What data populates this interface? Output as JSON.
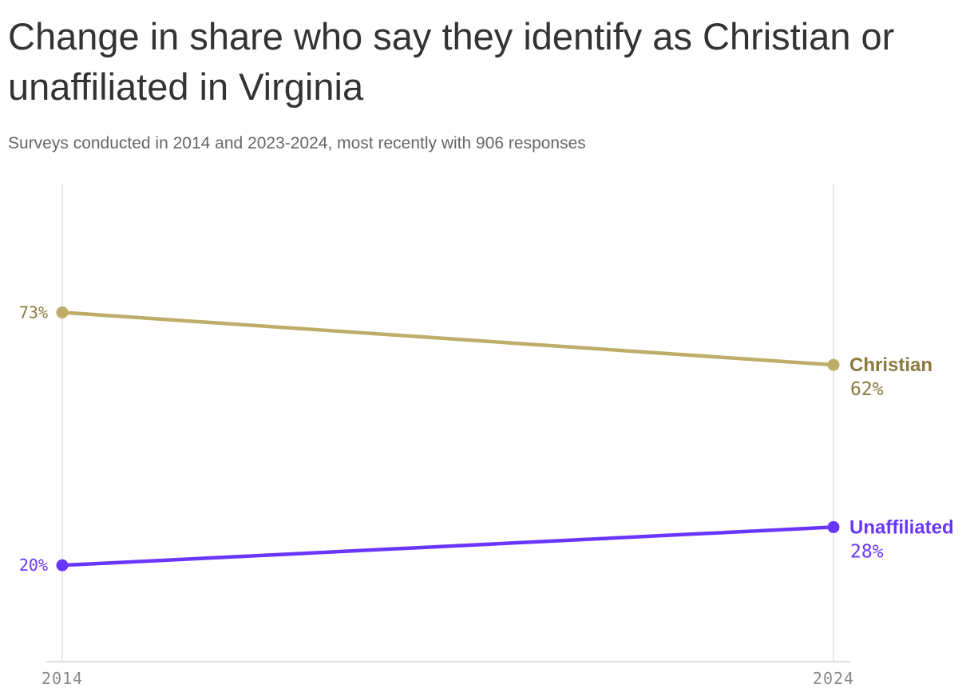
{
  "title": "Change in share who say they identify as Christian or unaffiliated in Virginia",
  "subtitle": "Surveys conducted in 2014 and 2023-2024, most recently with 906 responses",
  "chart_data": {
    "type": "line",
    "x": [
      "2014",
      "2024"
    ],
    "series": [
      {
        "name": "Christian",
        "values": [
          73,
          62
        ],
        "labels": [
          "73%",
          "62%"
        ],
        "color": "#bfac68",
        "label_color": "#8a7a3f"
      },
      {
        "name": "Unaffiliated",
        "values": [
          20,
          28
        ],
        "labels": [
          "20%",
          "28%"
        ],
        "color": "#6a35ff",
        "label_color": "#6a35ff"
      }
    ],
    "ylim": [
      -0.2,
      100
    ],
    "grid": "vertical lines at each year",
    "legend": "inline labels at line ends"
  }
}
